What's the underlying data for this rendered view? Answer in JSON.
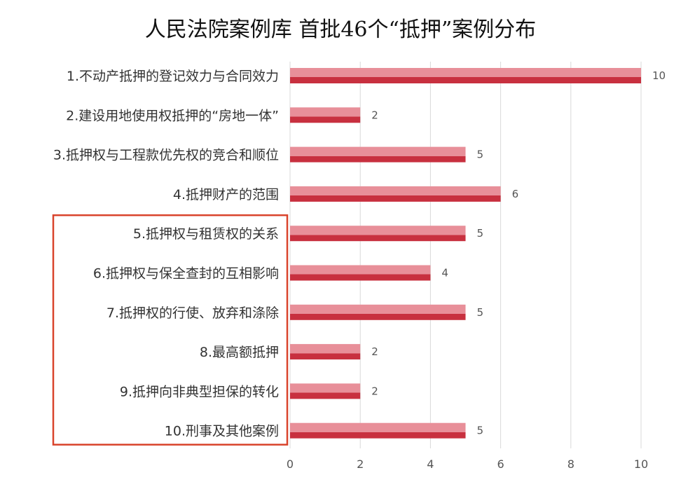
{
  "chart_data": {
    "type": "bar",
    "orientation": "horizontal",
    "title": "人民法院案例库  首批46个“抵押”案例分布",
    "categories": [
      "1.不动产抵押的登记效力与合同效力",
      "2.建设用地使用权抵押的“房地一体”",
      "3.抵押权与工程款优先权的竞合和顺位",
      "4.抵押财产的范围",
      "5.抵押权与租赁权的关系",
      "6.抵押权与保全查封的互相影响",
      "7.抵押权的行使、放弃和涤除",
      "8.最高额抵押",
      "9.抵押向非典型担保的转化",
      "10.刑事及其他案例"
    ],
    "values": [
      10,
      2,
      5,
      6,
      5,
      4,
      5,
      2,
      2,
      5
    ],
    "xlim": [
      0,
      10
    ],
    "xticks": [
      0,
      2,
      4,
      6,
      8,
      10
    ],
    "grid": true,
    "legend": "none",
    "colors": {
      "bar_top": "#e88f99",
      "bar_bottom": "#c8303f",
      "highlight_box": "#d9442c"
    },
    "highlight": {
      "from_index": 4,
      "to_index": 9
    }
  }
}
